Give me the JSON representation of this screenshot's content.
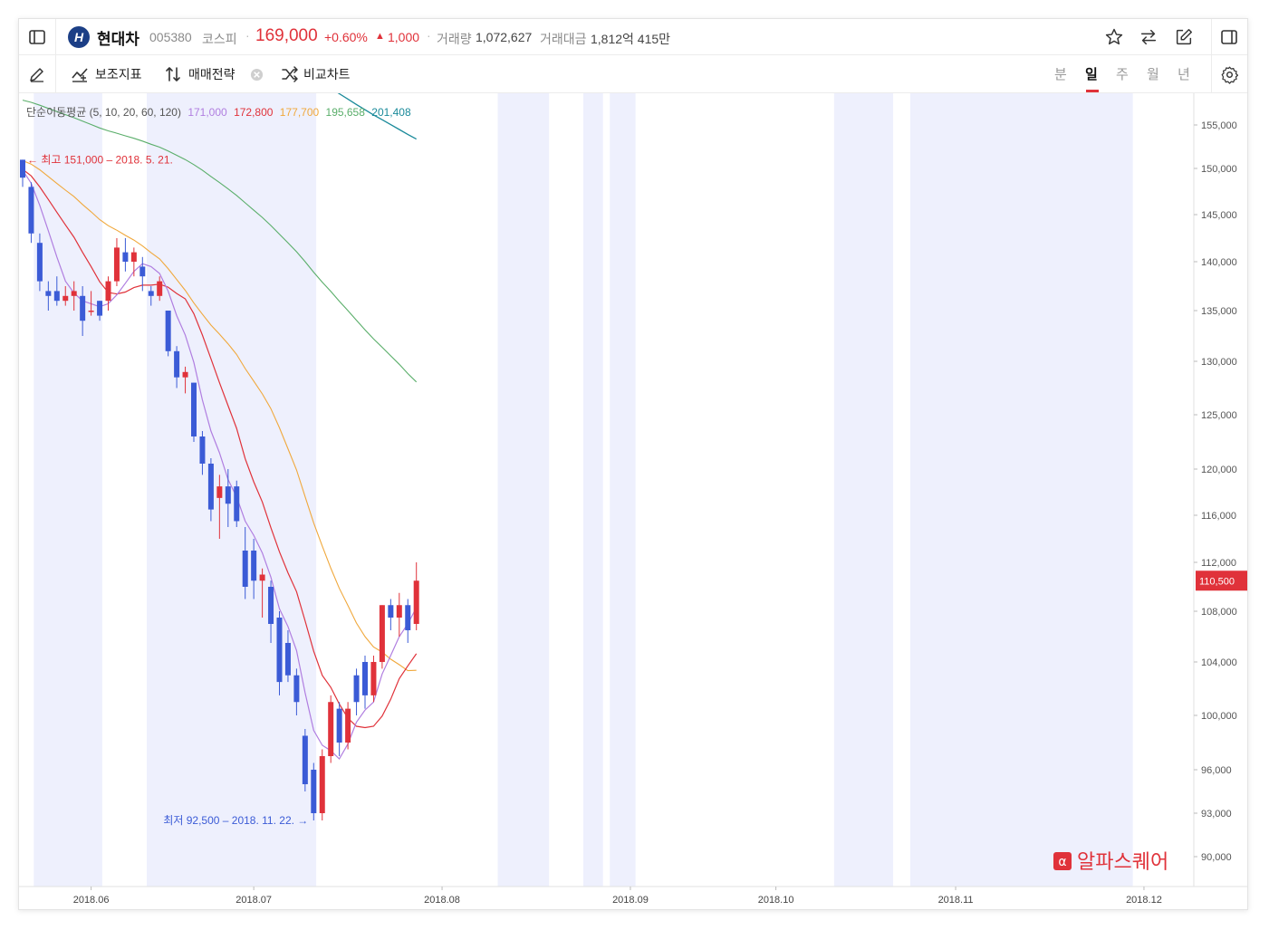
{
  "header": {
    "stock_name": "현대차",
    "code": "005380",
    "market": "코스피",
    "price": "169,000",
    "change_pct": "+0.60%",
    "change_amt": "1,000",
    "volume_label": "거래량",
    "volume": "1,072,627",
    "amount_label": "거래대금",
    "amount": "1,812억 415만"
  },
  "toolbar": {
    "indicator_label": "보조지표",
    "strategy_label": "매매전략",
    "compare_label": "비교차트",
    "periods": [
      "분",
      "일",
      "주",
      "월",
      "년"
    ],
    "active_period": "일"
  },
  "colors": {
    "up": "#e0323a",
    "down": "#3b5bd6",
    "ma5": "#b07ee0",
    "ma10": "#e0323a",
    "ma20": "#f0a83c",
    "ma60": "#5aae6a",
    "ma120": "#1a8a9a",
    "shade": "#eef0fd"
  },
  "chart_data": {
    "type": "candlestick",
    "ma_legend": {
      "title": "단순이동평균 (5, 10, 20, 60, 120)",
      "values": [
        "171,000",
        "172,800",
        "177,700",
        "195,658",
        "201,408"
      ]
    },
    "y_ticks": [
      {
        "label": "155,000",
        "v": 155000
      },
      {
        "label": "150,000",
        "v": 150000
      },
      {
        "label": "145,000",
        "v": 145000
      },
      {
        "label": "140,000",
        "v": 140000
      },
      {
        "label": "135,000",
        "v": 135000
      },
      {
        "label": "130,000",
        "v": 130000
      },
      {
        "label": "125,000",
        "v": 125000
      },
      {
        "label": "120,000",
        "v": 120000
      },
      {
        "label": "116,000",
        "v": 116000
      },
      {
        "label": "112,000",
        "v": 112000
      },
      {
        "label": "108,000",
        "v": 108000
      },
      {
        "label": "104,000",
        "v": 104000
      },
      {
        "label": "100,000",
        "v": 100000
      },
      {
        "label": "96,000",
        "v": 96000
      },
      {
        "label": "93,000",
        "v": 93000
      },
      {
        "label": "90,000",
        "v": 90000
      }
    ],
    "x_ticks": [
      {
        "label": "2018.06",
        "i": 8
      },
      {
        "label": "2018.07",
        "i": 27
      },
      {
        "label": "2018.08",
        "i": 49
      },
      {
        "label": "2018.09",
        "i": 71
      },
      {
        "label": "2018.10",
        "i": 88
      },
      {
        "label": "2018.11",
        "i": 109
      },
      {
        "label": "2018.12",
        "i": 131
      }
    ],
    "current_price_label": "110,500",
    "current_price": 110500,
    "high_annotation": "← 최고 151,000 – 2018. 5. 21.",
    "low_annotation": "최저 92,500 – 2018. 11. 22. →",
    "watermark": "알파스퀘어",
    "shaded_ranges": [
      [
        1.3,
        9.3
      ],
      [
        14.5,
        34.3
      ],
      [
        55.5,
        61.5
      ],
      [
        65.5,
        67.8
      ],
      [
        68.6,
        71.6
      ],
      [
        94.8,
        101.7
      ],
      [
        103.7,
        129.7
      ]
    ],
    "candles": [
      [
        151000,
        151000,
        148000,
        149000
      ],
      [
        148000,
        148500,
        142000,
        143000
      ],
      [
        142000,
        143000,
        137000,
        138000
      ],
      [
        137000,
        138000,
        135000,
        136500
      ],
      [
        137000,
        138500,
        135500,
        136000
      ],
      [
        136000,
        137500,
        135500,
        136500
      ],
      [
        136500,
        138000,
        135000,
        137000
      ],
      [
        136500,
        137500,
        132500,
        134000
      ],
      [
        135000,
        137000,
        134500,
        135000
      ],
      [
        136000,
        136000,
        134000,
        134500
      ],
      [
        136000,
        138500,
        135000,
        138000
      ],
      [
        138000,
        142500,
        137500,
        141500
      ],
      [
        141000,
        142500,
        139000,
        140000
      ],
      [
        140000,
        141500,
        138500,
        141000
      ],
      [
        139500,
        140500,
        137000,
        138500
      ],
      [
        137000,
        137500,
        135500,
        136500
      ],
      [
        136500,
        138500,
        136000,
        138000
      ],
      [
        135000,
        135000,
        130500,
        131000
      ],
      [
        131000,
        131500,
        127500,
        128500
      ],
      [
        128500,
        129500,
        127000,
        129000
      ],
      [
        128000,
        128000,
        122500,
        123000
      ],
      [
        123000,
        123500,
        119500,
        120500
      ],
      [
        120500,
        121000,
        115500,
        116500
      ],
      [
        117500,
        119500,
        114000,
        118500
      ],
      [
        118500,
        120000,
        115000,
        117000
      ],
      [
        118500,
        119000,
        115000,
        115500
      ],
      [
        113000,
        115000,
        109000,
        110000
      ],
      [
        113000,
        114000,
        109000,
        110500
      ],
      [
        110500,
        111500,
        107500,
        111000
      ],
      [
        110000,
        110500,
        105500,
        107000
      ],
      [
        107500,
        108000,
        101500,
        102500
      ],
      [
        105500,
        106500,
        102500,
        103000
      ],
      [
        103000,
        103500,
        100000,
        101000
      ],
      [
        98500,
        99000,
        94500,
        95000
      ],
      [
        96000,
        96500,
        92500,
        93000
      ],
      [
        93000,
        97500,
        92500,
        97000
      ],
      [
        97000,
        101500,
        96500,
        101000
      ],
      [
        100500,
        101000,
        97000,
        98000
      ],
      [
        98000,
        101000,
        97500,
        100500
      ],
      [
        103000,
        103500,
        100000,
        101000
      ],
      [
        104000,
        104500,
        100500,
        101500
      ],
      [
        101500,
        104500,
        101000,
        104000
      ],
      [
        104000,
        108500,
        103500,
        108500
      ],
      [
        108500,
        109000,
        106500,
        107500
      ],
      [
        107500,
        109500,
        106000,
        108500
      ],
      [
        108500,
        109000,
        105500,
        106500
      ],
      [
        107000,
        112000,
        106500,
        110500
      ]
    ]
  }
}
